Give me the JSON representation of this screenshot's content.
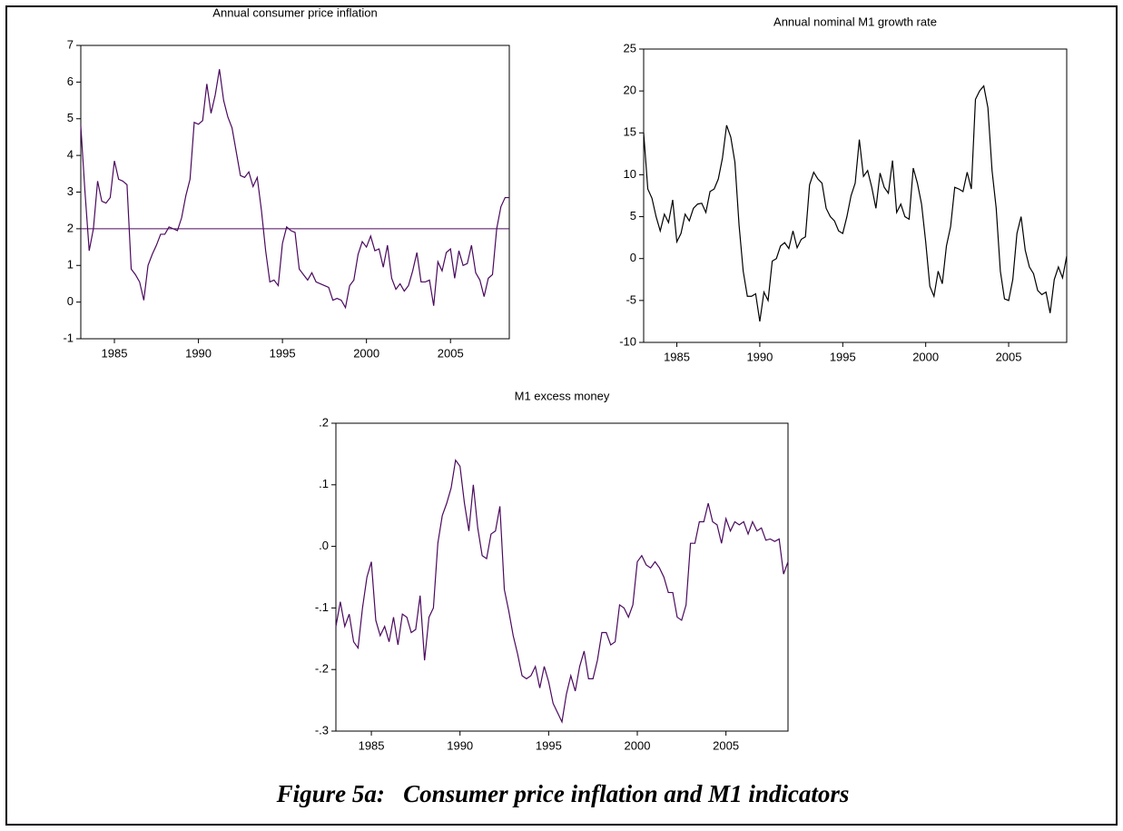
{
  "chart_data": [
    {
      "type": "line",
      "title": "Annual consumer price inflation",
      "color": "#4b0a5e",
      "x": [
        1983,
        1983.25,
        1983.5,
        1983.75,
        1984,
        1984.25,
        1984.5,
        1984.75,
        1985,
        1985.25,
        1985.5,
        1985.75,
        1986,
        1986.25,
        1986.5,
        1986.75,
        1987,
        1987.25,
        1987.5,
        1987.75,
        1988,
        1988.25,
        1988.5,
        1988.75,
        1989,
        1989.25,
        1989.5,
        1989.75,
        1990,
        1990.25,
        1990.5,
        1990.75,
        1991,
        1991.25,
        1991.5,
        1991.75,
        1992,
        1992.25,
        1992.5,
        1992.75,
        1993,
        1993.25,
        1993.5,
        1993.75,
        1994,
        1994.25,
        1994.5,
        1994.75,
        1995,
        1995.25,
        1995.5,
        1995.75,
        1996,
        1996.25,
        1996.5,
        1996.75,
        1997,
        1997.25,
        1997.5,
        1997.75,
        1998,
        1998.25,
        1998.5,
        1998.75,
        1999,
        1999.25,
        1999.5,
        1999.75,
        2000,
        2000.25,
        2000.5,
        2000.75,
        2001,
        2001.25,
        2001.5,
        2001.75,
        2002,
        2002.25,
        2002.5,
        2002.75,
        2003,
        2003.25,
        2003.5,
        2003.75,
        2004,
        2004.25,
        2004.5,
        2004.75,
        2005,
        2005.25,
        2005.5,
        2005.75,
        2006,
        2006.25,
        2006.5,
        2006.75,
        2007,
        2007.25,
        2007.5,
        2007.75,
        2008,
        2008.25,
        2008.5
      ],
      "values": [
        4.8,
        3.0,
        1.4,
        2.0,
        3.3,
        2.75,
        2.7,
        2.85,
        3.85,
        3.35,
        3.3,
        3.2,
        0.9,
        0.75,
        0.55,
        0.05,
        1.0,
        1.3,
        1.55,
        1.85,
        1.85,
        2.05,
        2.0,
        1.95,
        2.3,
        2.9,
        3.35,
        4.9,
        4.85,
        4.95,
        5.95,
        5.15,
        5.65,
        6.35,
        5.5,
        5.05,
        4.75,
        4.1,
        3.45,
        3.4,
        3.55,
        3.15,
        3.4,
        2.5,
        1.4,
        0.55,
        0.6,
        0.45,
        1.6,
        2.05,
        1.95,
        1.9,
        0.9,
        0.75,
        0.6,
        0.8,
        0.55,
        0.5,
        0.45,
        0.4,
        0.05,
        0.1,
        0.05,
        -0.15,
        0.45,
        0.6,
        1.3,
        1.65,
        1.5,
        1.8,
        1.4,
        1.45,
        0.95,
        1.55,
        0.65,
        0.35,
        0.5,
        0.3,
        0.45,
        0.85,
        1.35,
        0.55,
        0.55,
        0.6,
        -0.1,
        1.1,
        0.85,
        1.35,
        1.45,
        0.65,
        1.4,
        1.0,
        1.05,
        1.55,
        0.8,
        0.6,
        0.15,
        0.65,
        0.75,
        2.0,
        2.6,
        2.85,
        2.85
      ],
      "hline": 2,
      "xlim": [
        1983,
        2008.5
      ],
      "xticks": [
        1985,
        1990,
        1995,
        2000,
        2005
      ],
      "ylim": [
        -1,
        7
      ],
      "yticks": [
        -1,
        0,
        1,
        2,
        3,
        4,
        5,
        6,
        7
      ]
    },
    {
      "type": "line",
      "title": "Annual nominal M1 growth rate",
      "color": "#000000",
      "x": [
        1983,
        1983.25,
        1983.5,
        1983.75,
        1984,
        1984.25,
        1984.5,
        1984.75,
        1985,
        1985.25,
        1985.5,
        1985.75,
        1986,
        1986.25,
        1986.5,
        1986.75,
        1987,
        1987.25,
        1987.5,
        1987.75,
        1988,
        1988.25,
        1988.5,
        1988.75,
        1989,
        1989.25,
        1989.5,
        1989.75,
        1990,
        1990.25,
        1990.5,
        1990.75,
        1991,
        1991.25,
        1991.5,
        1991.75,
        1992,
        1992.25,
        1992.5,
        1992.75,
        1993,
        1993.25,
        1993.5,
        1993.75,
        1994,
        1994.25,
        1994.5,
        1994.75,
        1995,
        1995.25,
        1995.5,
        1995.75,
        1996,
        1996.25,
        1996.5,
        1996.75,
        1997,
        1997.25,
        1997.5,
        1997.75,
        1998,
        1998.25,
        1998.5,
        1998.75,
        1999,
        1999.25,
        1999.5,
        1999.75,
        2000,
        2000.25,
        2000.5,
        2000.75,
        2001,
        2001.25,
        2001.5,
        2001.75,
        2002,
        2002.25,
        2002.5,
        2002.75,
        2003,
        2003.25,
        2003.5,
        2003.75,
        2004,
        2004.25,
        2004.5,
        2004.75,
        2005,
        2005.25,
        2005.5,
        2005.75,
        2006,
        2006.25,
        2006.5,
        2006.75,
        2007,
        2007.25,
        2007.5,
        2007.75,
        2008,
        2008.25,
        2008.5
      ],
      "values": [
        15,
        8.3,
        7.2,
        5.0,
        3.3,
        5.3,
        4.3,
        7.0,
        2.0,
        3.0,
        5.3,
        4.5,
        6.0,
        6.5,
        6.6,
        5.5,
        8.0,
        8.3,
        9.5,
        12.0,
        15.9,
        14.5,
        11.5,
        4.0,
        -1.5,
        -4.5,
        -4.5,
        -4.2,
        -7.5,
        -4.0,
        -5.0,
        -0.3,
        0.0,
        1.5,
        1.9,
        1.2,
        3.3,
        1.3,
        2.3,
        2.6,
        8.8,
        10.3,
        9.5,
        9.0,
        6.0,
        5.0,
        4.5,
        3.3,
        3.0,
        5.0,
        7.5,
        9.0,
        14.2,
        9.8,
        10.5,
        8.5,
        6.0,
        10.2,
        8.5,
        7.8,
        11.7,
        5.5,
        6.5,
        5.0,
        4.7,
        10.8,
        9.0,
        6.5,
        2.0,
        -3.3,
        -4.5,
        -1.5,
        -3.0,
        1.5,
        3.8,
        8.5,
        8.3,
        8.0,
        10.3,
        8.3,
        19.0,
        20.0,
        20.6,
        18.0,
        10.5,
        6.0,
        -1.5,
        -4.8,
        -5.0,
        -2.5,
        3.0,
        5.0,
        1.0,
        -1.0,
        -1.8,
        -3.8,
        -4.3,
        -4.0,
        -6.5,
        -2.5,
        -1.0,
        -2.3,
        0.3
      ],
      "xlim": [
        1983,
        2008.5
      ],
      "xticks": [
        1985,
        1990,
        1995,
        2000,
        2005
      ],
      "ylim": [
        -10,
        25
      ],
      "yticks": [
        -10,
        -5,
        0,
        5,
        10,
        15,
        20,
        25
      ]
    },
    {
      "type": "line",
      "title": "M1 excess money",
      "color": "#4b0a5e",
      "x": [
        1983,
        1983.25,
        1983.5,
        1983.75,
        1984,
        1984.25,
        1984.5,
        1984.75,
        1985,
        1985.25,
        1985.5,
        1985.75,
        1986,
        1986.25,
        1986.5,
        1986.75,
        1987,
        1987.25,
        1987.5,
        1987.75,
        1988,
        1988.25,
        1988.5,
        1988.75,
        1989,
        1989.25,
        1989.5,
        1989.75,
        1990,
        1990.25,
        1990.5,
        1990.75,
        1991,
        1991.25,
        1991.5,
        1991.75,
        1992,
        1992.25,
        1992.5,
        1992.75,
        1993,
        1993.25,
        1993.5,
        1993.75,
        1994,
        1994.25,
        1994.5,
        1994.75,
        1995,
        1995.25,
        1995.5,
        1995.75,
        1996,
        1996.25,
        1996.5,
        1996.75,
        1997,
        1997.25,
        1997.5,
        1997.75,
        1998,
        1998.25,
        1998.5,
        1998.75,
        1999,
        1999.25,
        1999.5,
        1999.75,
        2000,
        2000.25,
        2000.5,
        2000.75,
        2001,
        2001.25,
        2001.5,
        2001.75,
        2002,
        2002.25,
        2002.5,
        2002.75,
        2003,
        2003.25,
        2003.5,
        2003.75,
        2004,
        2004.25,
        2004.5,
        2004.75,
        2005,
        2005.25,
        2005.5,
        2005.75,
        2006,
        2006.25,
        2006.5,
        2006.75,
        2007,
        2007.25,
        2007.5,
        2007.75,
        2008,
        2008.25,
        2008.5
      ],
      "values": [
        -0.13,
        -0.09,
        -0.13,
        -0.11,
        -0.155,
        -0.165,
        -0.1,
        -0.05,
        -0.025,
        -0.12,
        -0.145,
        -0.13,
        -0.155,
        -0.115,
        -0.16,
        -0.11,
        -0.115,
        -0.14,
        -0.135,
        -0.08,
        -0.185,
        -0.115,
        -0.1,
        0.005,
        0.05,
        0.07,
        0.095,
        0.14,
        0.13,
        0.07,
        0.025,
        0.1,
        0.03,
        -0.015,
        -0.02,
        0.02,
        0.025,
        0.065,
        -0.07,
        -0.105,
        -0.145,
        -0.175,
        -0.21,
        -0.215,
        -0.21,
        -0.195,
        -0.23,
        -0.195,
        -0.22,
        -0.255,
        -0.27,
        -0.285,
        -0.24,
        -0.21,
        -0.235,
        -0.195,
        -0.17,
        -0.215,
        -0.215,
        -0.185,
        -0.14,
        -0.14,
        -0.16,
        -0.155,
        -0.095,
        -0.1,
        -0.115,
        -0.095,
        -0.025,
        -0.015,
        -0.03,
        -0.035,
        -0.025,
        -0.035,
        -0.05,
        -0.075,
        -0.075,
        -0.115,
        -0.12,
        -0.095,
        0.005,
        0.005,
        0.04,
        0.04,
        0.07,
        0.04,
        0.035,
        0.005,
        0.045,
        0.025,
        0.04,
        0.035,
        0.04,
        0.02,
        0.04,
        0.025,
        0.03,
        0.01,
        0.012,
        0.008,
        0.012,
        -0.045,
        -0.025
      ],
      "xlim": [
        1983,
        2008.5
      ],
      "xticks": [
        1985,
        1990,
        1995,
        2000,
        2005
      ],
      "ylim": [
        -0.3,
        0.2
      ],
      "yticks": [
        {
          "value": -0.3,
          "label": "-.3"
        },
        {
          "value": -0.2,
          "label": "-.2"
        },
        {
          "value": -0.1,
          "label": "-.1"
        },
        {
          "value": 0,
          "label": ".0"
        },
        {
          "value": 0.1,
          "label": ".1"
        },
        {
          "value": 0.2,
          "label": ".2"
        }
      ]
    }
  ],
  "caption": "Figure 5a:   Consumer price inflation and M1 indicators"
}
